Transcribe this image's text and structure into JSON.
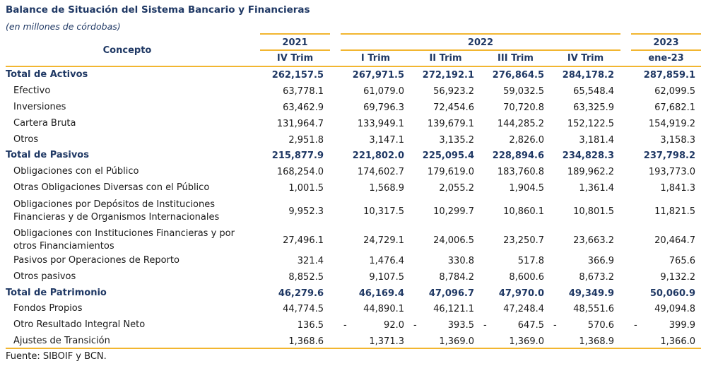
{
  "title": "Balance de Situación del Sistema Bancario y Financieras",
  "subtitle": "(en millones de córdobas)",
  "header": {
    "concept": "Concepto",
    "years": [
      "2021",
      "2022",
      "2023"
    ],
    "periods": [
      "IV Trim",
      "I Trim",
      "II Trim",
      "III Trim",
      "IV Trim",
      "ene-23"
    ]
  },
  "rows": [
    {
      "label": "Total de Activos",
      "total": true,
      "values": [
        "262,157.5",
        "267,971.5",
        "272,192.1",
        "276,864.5",
        "284,178.2",
        "287,859.1"
      ]
    },
    {
      "label": "Efectivo",
      "values": [
        "63,778.1",
        "61,079.0",
        "56,923.2",
        "59,032.5",
        "65,548.4",
        "62,099.5"
      ]
    },
    {
      "label": "Inversiones",
      "values": [
        "63,462.9",
        "69,796.3",
        "72,454.6",
        "70,720.8",
        "63,325.9",
        "67,682.1"
      ]
    },
    {
      "label": "Cartera Bruta",
      "values": [
        "131,964.7",
        "133,949.1",
        "139,679.1",
        "144,285.2",
        "152,122.5",
        "154,919.2"
      ]
    },
    {
      "label": "Otros",
      "values": [
        "2,951.8",
        "3,147.1",
        "3,135.2",
        "2,826.0",
        "3,181.4",
        "3,158.3"
      ]
    },
    {
      "label": "Total de Pasivos",
      "total": true,
      "values": [
        "215,877.9",
        "221,802.0",
        "225,095.4",
        "228,894.6",
        "234,828.3",
        "237,798.2"
      ]
    },
    {
      "label": "Obligaciones con el Público",
      "values": [
        "168,254.0",
        "174,602.7",
        "179,619.0",
        "183,760.8",
        "189,962.2",
        "193,773.0"
      ]
    },
    {
      "label": "Otras Obligaciones Diversas con el Público",
      "values": [
        "1,001.5",
        "1,568.9",
        "2,055.2",
        "1,904.5",
        "1,361.4",
        "1,841.3"
      ]
    },
    {
      "label": "Obligaciones por Depósitos de Instituciones",
      "label2": "Financieras y de Organismos Internacionales",
      "values": [
        "9,952.3",
        "10,317.5",
        "10,299.7",
        "10,860.1",
        "10,801.5",
        "11,821.5"
      ]
    },
    {
      "label": "Obligaciones con Instituciones Financieras y por",
      "label2": "otros Financiamientos",
      "values": [
        "27,496.1",
        "24,729.1",
        "24,006.5",
        "23,250.7",
        "23,663.2",
        "20,464.7"
      ]
    },
    {
      "label": "Pasivos por Operaciones de Reporto",
      "values": [
        "321.4",
        "1,476.4",
        "330.8",
        "517.8",
        "366.9",
        "765.6"
      ]
    },
    {
      "label": "Otros pasivos",
      "values": [
        "8,852.5",
        "9,107.5",
        "8,784.2",
        "8,600.6",
        "8,673.2",
        "9,132.2"
      ]
    },
    {
      "label": "Total de Patrimonio",
      "total": true,
      "values": [
        "46,279.6",
        "46,169.4",
        "47,096.7",
        "47,970.0",
        "49,349.9",
        "50,060.9"
      ]
    },
    {
      "label": "Fondos Propios",
      "values": [
        "44,774.5",
        "44,890.1",
        "46,121.1",
        "47,248.4",
        "48,551.6",
        "49,094.8"
      ]
    },
    {
      "label": "Otro Resultado Integral Neto",
      "values": [
        "136.5",
        "92.0",
        "393.5",
        "647.5",
        "570.6",
        "399.9"
      ],
      "neg": [
        false,
        true,
        true,
        true,
        true,
        true
      ],
      "neg_sign": "-"
    },
    {
      "label": "Ajustes de Transición",
      "values": [
        "1,368.6",
        "1,371.3",
        "1,369.0",
        "1,369.0",
        "1,368.9",
        "1,366.0"
      ]
    }
  ],
  "source": "Fuente: SIBOIF y BCN.",
  "colors": {
    "accent": "#f2b630",
    "heading": "#1f3864"
  }
}
